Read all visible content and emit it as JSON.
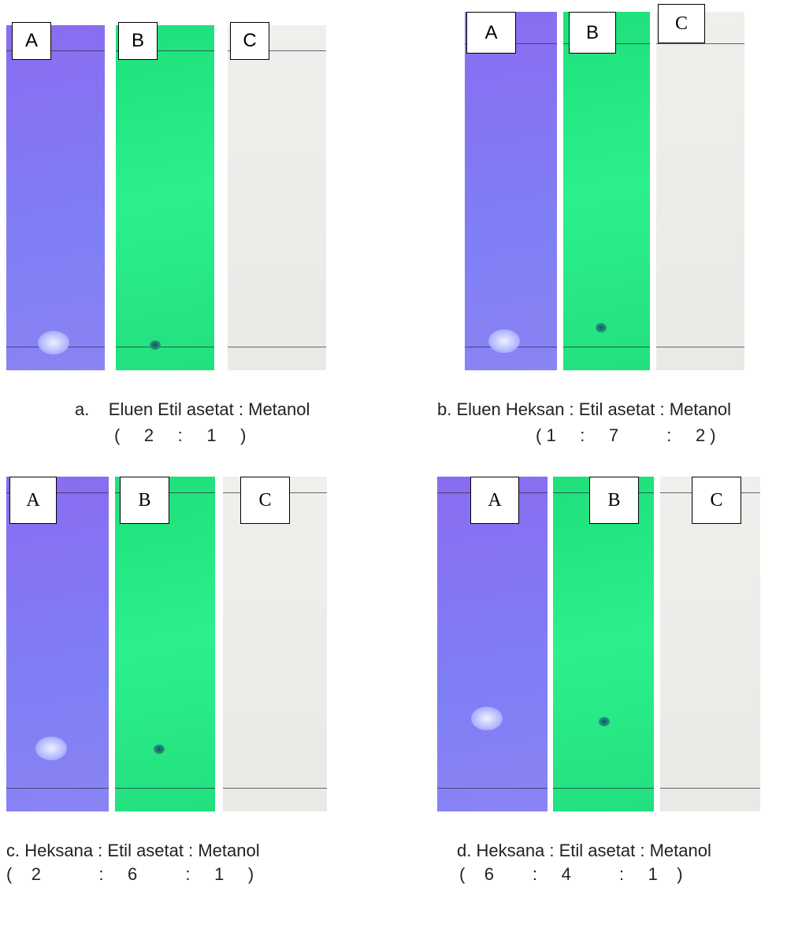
{
  "panels": [
    {
      "labels": [
        "A",
        "B",
        "C"
      ],
      "caption": [
        "a.    Eluen Etil asetat : Metanol",
        "(     2     :     1     )"
      ]
    },
    {
      "labels": [
        "A",
        "B",
        "C"
      ],
      "caption": [
        "b. Eluen Heksan : Etil asetat : Metanol",
        "( 1     :     7          :     2 )"
      ]
    },
    {
      "labels": [
        "A",
        "B",
        "C"
      ],
      "caption": [
        "c. Heksana : Etil asetat : Metanol",
        "(    2            :     6          :     1     )"
      ]
    },
    {
      "labels": [
        "A",
        "B",
        "C"
      ],
      "caption": [
        "d. Heksana : Etil asetat : Metanol",
        "(    6        :     4          :     1    )"
      ]
    }
  ]
}
